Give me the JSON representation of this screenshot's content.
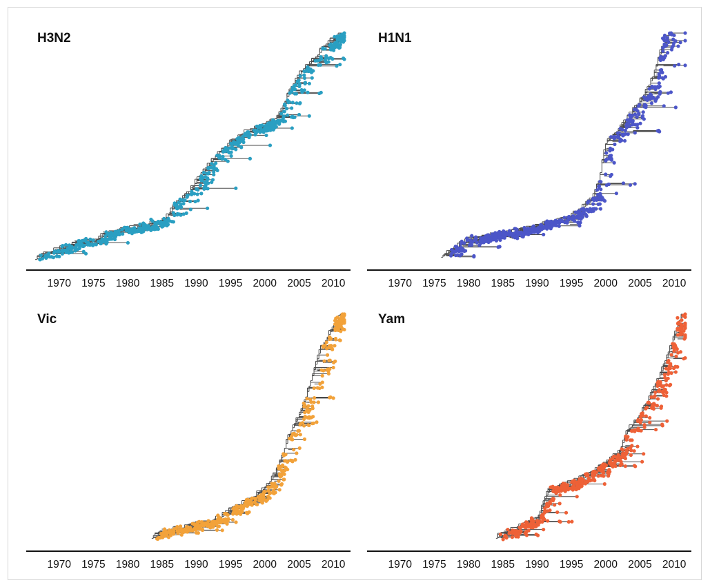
{
  "chart_data": [
    {
      "type": "scatter",
      "subtype": "time-scaled phylogenetic tree",
      "title": "H3N2",
      "color": "#2a9fc2",
      "xlim": [
        1966,
        2012
      ],
      "xticks": [
        "1970",
        "1975",
        "1980",
        "1985",
        "1990",
        "1995",
        "2000",
        "2005",
        "2010"
      ],
      "tick_values": [
        1970,
        1975,
        1980,
        1985,
        1990,
        1995,
        2000,
        2005,
        2010
      ],
      "trunk": [
        [
          1966.5,
          0.01
        ],
        [
          1969,
          0.04
        ],
        [
          1972,
          0.07
        ],
        [
          1975,
          0.09
        ],
        [
          1977,
          0.12
        ],
        [
          1985,
          0.17
        ],
        [
          1987,
          0.25
        ],
        [
          1989,
          0.31
        ],
        [
          1991,
          0.39
        ],
        [
          1993,
          0.47
        ],
        [
          1995,
          0.52
        ],
        [
          1997,
          0.56
        ],
        [
          2000,
          0.59
        ],
        [
          2002,
          0.64
        ],
        [
          2003.5,
          0.74
        ],
        [
          2005,
          0.82
        ],
        [
          2007,
          0.88
        ],
        [
          2009,
          0.95
        ],
        [
          2011,
          0.99
        ]
      ]
    },
    {
      "type": "scatter",
      "subtype": "time-scaled phylogenetic tree",
      "title": "H1N1",
      "color": "#4c56c8",
      "xlim": [
        1966,
        2012
      ],
      "xticks": [
        "1970",
        "1975",
        "1980",
        "1985",
        "1990",
        "1995",
        "2000",
        "2005",
        "2010"
      ],
      "tick_values": [
        1970,
        1975,
        1980,
        1985,
        1990,
        1995,
        2000,
        2005,
        2010
      ],
      "trunk": [
        [
          1976,
          0.02
        ],
        [
          1978,
          0.06
        ],
        [
          1980,
          0.09
        ],
        [
          1986,
          0.12
        ],
        [
          1990,
          0.15
        ],
        [
          1994,
          0.18
        ],
        [
          1996,
          0.22
        ],
        [
          1998,
          0.27
        ],
        [
          1999,
          0.36
        ],
        [
          2000,
          0.52
        ],
        [
          2002,
          0.58
        ],
        [
          2004,
          0.66
        ],
        [
          2005.5,
          0.72
        ],
        [
          2007,
          0.82
        ],
        [
          2008,
          0.92
        ],
        [
          2009.2,
          0.99
        ]
      ]
    },
    {
      "type": "scatter",
      "subtype": "time-scaled phylogenetic tree",
      "title": "Vic",
      "color": "#f2a23a",
      "xlim": [
        1966,
        2012
      ],
      "xticks": [
        "1970",
        "1975",
        "1980",
        "1985",
        "1990",
        "1995",
        "2000",
        "2005",
        "2010"
      ],
      "tick_values": [
        1970,
        1975,
        1980,
        1985,
        1990,
        1995,
        2000,
        2005,
        2010
      ],
      "trunk": [
        [
          1983.5,
          0.02
        ],
        [
          1986,
          0.05
        ],
        [
          1990,
          0.07
        ],
        [
          1993,
          0.1
        ],
        [
          1995,
          0.14
        ],
        [
          1998,
          0.19
        ],
        [
          2000,
          0.24
        ],
        [
          2001.5,
          0.3
        ],
        [
          2002.5,
          0.38
        ],
        [
          2003.5,
          0.47
        ],
        [
          2005,
          0.56
        ],
        [
          2006,
          0.64
        ],
        [
          2007,
          0.74
        ],
        [
          2008,
          0.84
        ],
        [
          2009.5,
          0.92
        ],
        [
          2011,
          0.99
        ]
      ]
    },
    {
      "type": "scatter",
      "subtype": "time-scaled phylogenetic tree",
      "title": "Yam",
      "color": "#ee6137",
      "xlim": [
        1966,
        2012
      ],
      "xticks": [
        "1970",
        "1975",
        "1980",
        "1985",
        "1990",
        "1995",
        "2000",
        "2005",
        "2010"
      ],
      "tick_values": [
        1970,
        1975,
        1980,
        1985,
        1990,
        1995,
        2000,
        2005,
        2010
      ],
      "trunk": [
        [
          1984,
          0.02
        ],
        [
          1987,
          0.06
        ],
        [
          1990,
          0.1
        ],
        [
          1991.5,
          0.22
        ],
        [
          1995,
          0.26
        ],
        [
          1998,
          0.3
        ],
        [
          2000,
          0.35
        ],
        [
          2002,
          0.4
        ],
        [
          2003,
          0.48
        ],
        [
          2005,
          0.56
        ],
        [
          2006.5,
          0.64
        ],
        [
          2008,
          0.74
        ],
        [
          2009.5,
          0.86
        ],
        [
          2011,
          0.99
        ]
      ]
    }
  ]
}
